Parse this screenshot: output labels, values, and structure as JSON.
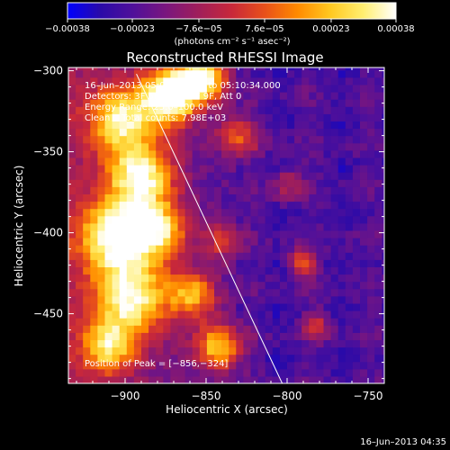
{
  "chart_data": {
    "type": "heatmap",
    "title": "Reconstructed RHESSI Image",
    "xlabel": "Heliocentric X (arcsec)",
    "ylabel": "Heliocentric Y (arcsec)",
    "xlim": [
      -935,
      -740
    ],
    "ylim": [
      -493,
      -298
    ],
    "x_ticks": [
      {
        "value": -900,
        "label": "−900"
      },
      {
        "value": -850,
        "label": "−850"
      },
      {
        "value": -800,
        "label": "−800"
      },
      {
        "value": -750,
        "label": "−750"
      }
    ],
    "y_ticks": [
      {
        "value": -300,
        "label": "−300"
      },
      {
        "value": -350,
        "label": "−350"
      },
      {
        "value": -400,
        "label": "−400"
      },
      {
        "value": -450,
        "label": "−450"
      }
    ],
    "colorbar": {
      "min": -0.00038,
      "max": 0.00038,
      "unit_label": "(photons cm⁻² s⁻¹ asec⁻²)",
      "ticks": [
        {
          "value": -0.00038,
          "label": "−0.00038"
        },
        {
          "value": -0.00023,
          "label": "−0.00023"
        },
        {
          "value": -7.6e-05,
          "label": "−7.6e−05"
        },
        {
          "value": 7.6e-05,
          "label": "7.6e−05"
        },
        {
          "value": 0.00023,
          "label": "0.00023"
        },
        {
          "value": 0.00038,
          "label": "0.00038"
        }
      ],
      "colors": [
        "#0000ff",
        "#2a0aa8",
        "#50109a",
        "#7a167e",
        "#a01e5a",
        "#c8283a",
        "#e8501a",
        "#ff8a00",
        "#ffc820",
        "#ffee70",
        "#ffffff"
      ]
    },
    "info": [
      "16–Jun–2013 05:06:38.000 to 05:10:34.000",
      "Detectors: 3F 5F 6F 7F 8F 9F, Att 0",
      "Energy Range: 25.0–100.0 keV",
      "Clean    Total counts: 7.98E+03"
    ],
    "peak_label": "Position of Peak = [−856,−324]",
    "peak": [
      -856,
      -324
    ],
    "limb_line": [
      [
        -893,
        -302
      ],
      [
        -803,
        -493
      ]
    ],
    "bright_regions": [
      {
        "x": -872,
        "y": -315,
        "intensity": 1.0,
        "sigma": 12
      },
      {
        "x": -852,
        "y": -304,
        "intensity": 0.9,
        "sigma": 10
      },
      {
        "x": -902,
        "y": -330,
        "intensity": 0.7,
        "sigma": 14
      },
      {
        "x": -890,
        "y": -365,
        "intensity": 0.8,
        "sigma": 14
      },
      {
        "x": -905,
        "y": -402,
        "intensity": 0.85,
        "sigma": 16
      },
      {
        "x": -878,
        "y": -398,
        "intensity": 0.6,
        "sigma": 12
      },
      {
        "x": -895,
        "y": -440,
        "intensity": 0.75,
        "sigma": 16
      },
      {
        "x": -858,
        "y": -438,
        "intensity": 0.6,
        "sigma": 10
      },
      {
        "x": -842,
        "y": -470,
        "intensity": 0.7,
        "sigma": 10
      },
      {
        "x": -910,
        "y": -470,
        "intensity": 0.6,
        "sigma": 12
      },
      {
        "x": -830,
        "y": -340,
        "intensity": 0.45,
        "sigma": 9
      },
      {
        "x": -840,
        "y": -405,
        "intensity": 0.35,
        "sigma": 8
      },
      {
        "x": -790,
        "y": -418,
        "intensity": 0.5,
        "sigma": 6
      },
      {
        "x": -782,
        "y": -457,
        "intensity": 0.35,
        "sigma": 6
      },
      {
        "x": -800,
        "y": -370,
        "intensity": 0.3,
        "sigma": 7
      }
    ]
  },
  "timestamp": "16–Jun–2013 04:35"
}
